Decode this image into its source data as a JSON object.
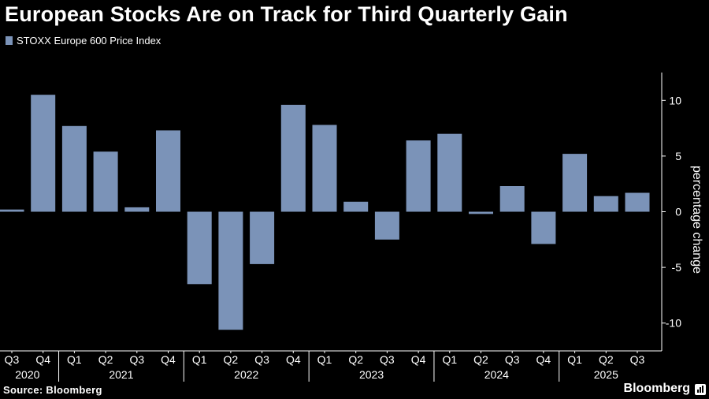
{
  "header": {
    "title": "European Stocks Are on Track for Third Quarterly Gain"
  },
  "colors": {
    "bar": "#7b93b8",
    "axis": "#ffffff",
    "background": "#000000"
  },
  "chart_data": {
    "type": "bar",
    "title": "European Stocks Are on Track for Third Quarterly Gain",
    "series": [
      {
        "name": "STOXX Europe 600 Price Index",
        "values": [
          0.2,
          10.5,
          7.7,
          5.4,
          0.4,
          7.3,
          -6.5,
          -10.6,
          -4.7,
          9.6,
          7.8,
          0.9,
          -2.5,
          6.4,
          7.0,
          -0.2,
          2.3,
          -2.9,
          5.2,
          1.4,
          1.7
        ]
      }
    ],
    "categories": [
      "Q3 2020",
      "Q4 2020",
      "Q1 2021",
      "Q2 2021",
      "Q3 2021",
      "Q4 2021",
      "Q1 2022",
      "Q2 2022",
      "Q3 2022",
      "Q4 2022",
      "Q1 2023",
      "Q2 2023",
      "Q3 2023",
      "Q4 2023",
      "Q1 2024",
      "Q2 2024",
      "Q3 2024",
      "Q4 2024",
      "Q1 2025",
      "Q2 2025",
      "Q3 2025"
    ],
    "quarter_labels": [
      "Q3",
      "Q4",
      "Q1",
      "Q2",
      "Q3",
      "Q4",
      "Q1",
      "Q2",
      "Q3",
      "Q4",
      "Q1",
      "Q2",
      "Q3",
      "Q4",
      "Q1",
      "Q2",
      "Q3",
      "Q4",
      "Q1",
      "Q2",
      "Q3"
    ],
    "years": [
      {
        "label": "2020",
        "first": 0,
        "last": 1
      },
      {
        "label": "2021",
        "first": 2,
        "last": 5
      },
      {
        "label": "2022",
        "first": 6,
        "last": 9
      },
      {
        "label": "2023",
        "first": 10,
        "last": 13
      },
      {
        "label": "2024",
        "first": 14,
        "last": 17
      },
      {
        "label": "2025",
        "first": 18,
        "last": 20
      }
    ],
    "ylabel": "percentage change",
    "ylim": [
      -12.5,
      12.5
    ],
    "yticks": [
      10,
      5,
      0,
      -5,
      -10
    ],
    "ytick_labels": [
      "10",
      "5",
      "0",
      "-5",
      "-10"
    ],
    "legend_position": "top-left",
    "grid": false
  },
  "footer": {
    "source": "Source: Bloomberg",
    "brand": "Bloomberg"
  }
}
